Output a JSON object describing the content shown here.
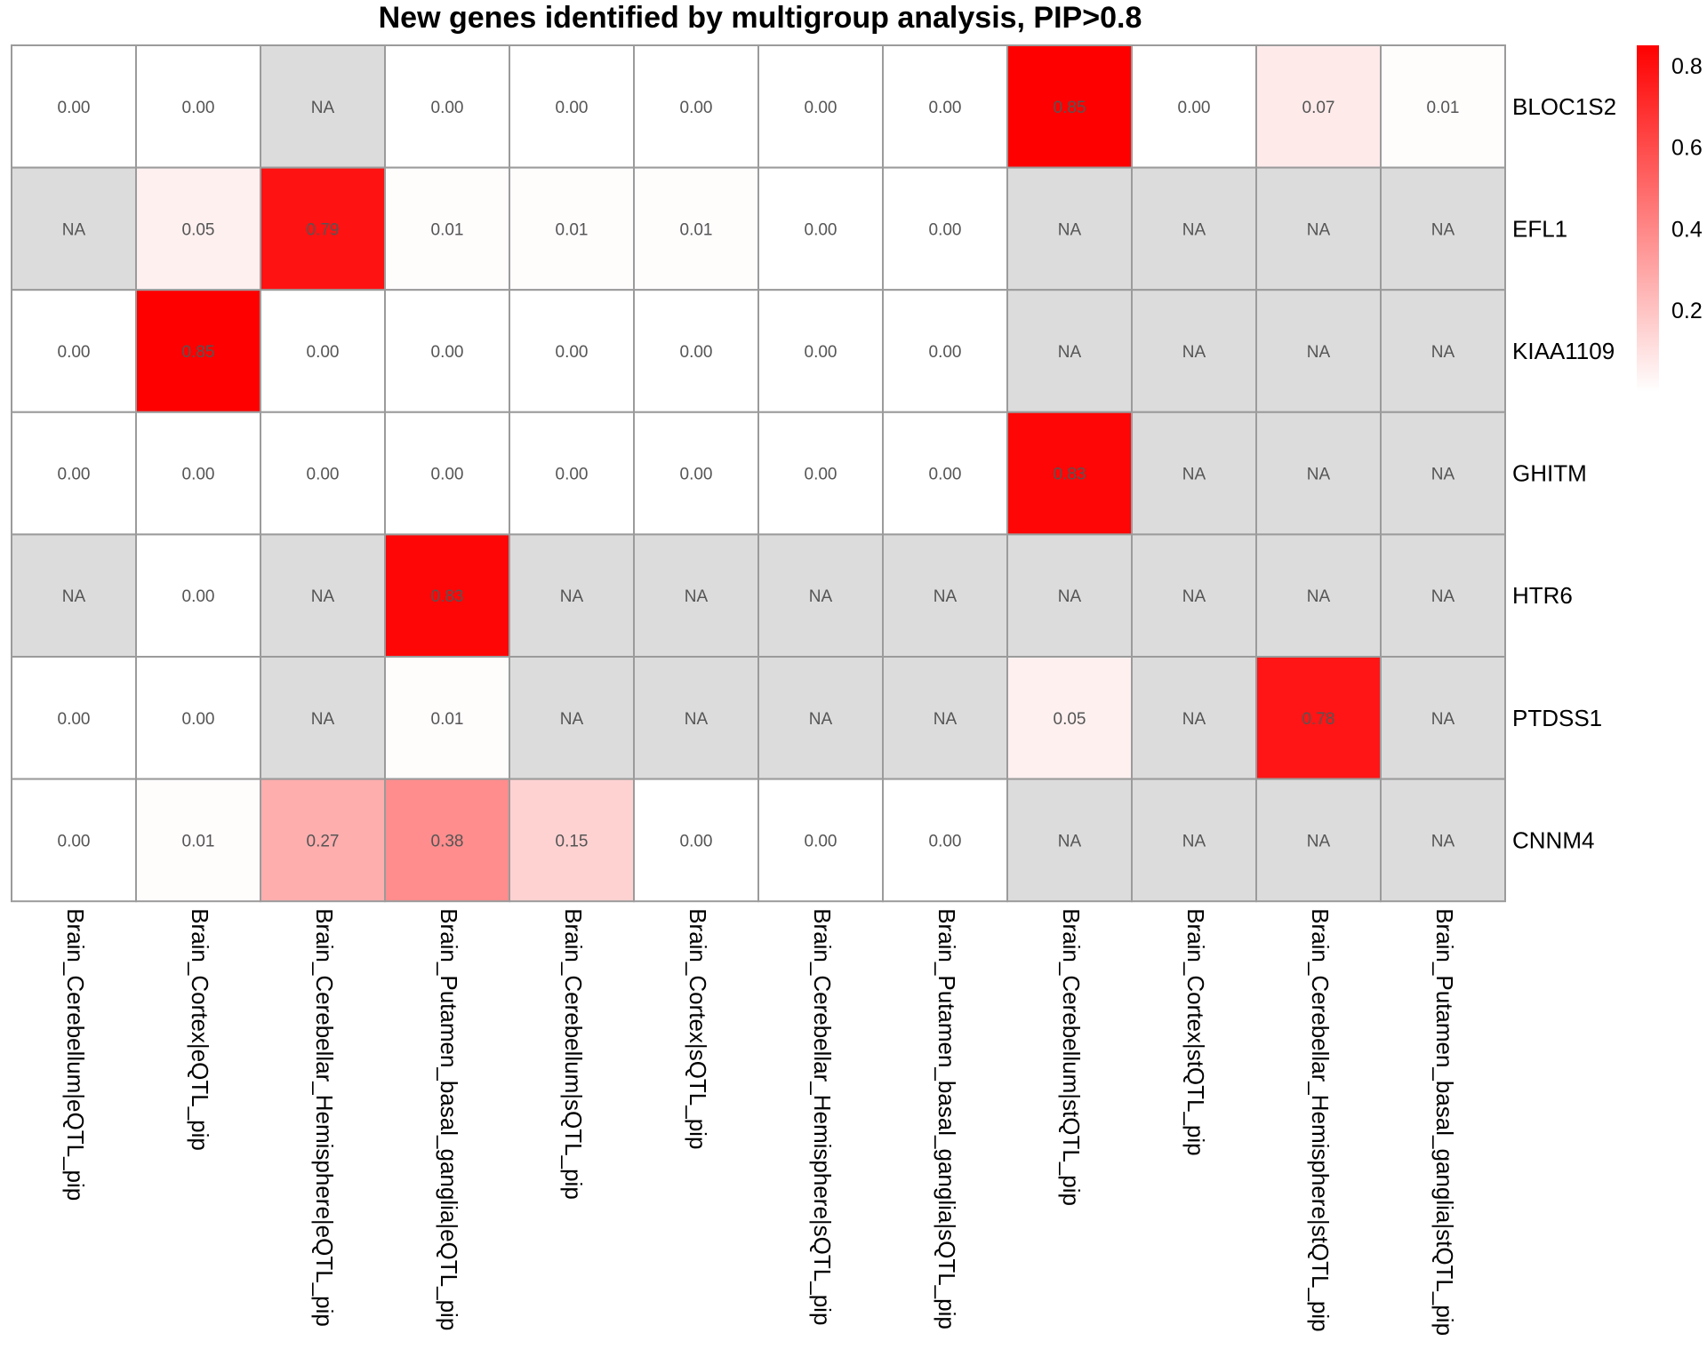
{
  "chart_data": {
    "type": "heatmap",
    "title": "New genes identified by multigroup analysis, PIP>0.8",
    "rows": [
      "BLOC1S2",
      "EFL1",
      "KIAA1109",
      "GHITM",
      "HTR6",
      "PTDSS1",
      "CNNM4"
    ],
    "columns": [
      "Brain_Cerebellum|eQTL_pip",
      "Brain_Cortex|eQTL_pip",
      "Brain_Cerebellar_Hemisphere|eQTL_pip",
      "Brain_Putamen_basal_ganglia|eQTL_pip",
      "Brain_Cerebellum|sQTL_pip",
      "Brain_Cortex|sQTL_pip",
      "Brain_Cerebellar_Hemisphere|sQTL_pip",
      "Brain_Putamen_basal_ganglia|sQTL_pip",
      "Brain_Cerebellum|stQTL_pip",
      "Brain_Cortex|stQTL_pip",
      "Brain_Cerebellar_Hemisphere|stQTL_pip",
      "Brain_Putamen_basal_ganglia|stQTL_pip"
    ],
    "values": [
      [
        0.0,
        0.0,
        null,
        0.0,
        0.0,
        0.0,
        0.0,
        0.0,
        0.85,
        0.0,
        0.07,
        0.01
      ],
      [
        null,
        0.05,
        0.79,
        0.01,
        0.01,
        0.01,
        0.0,
        0.0,
        null,
        null,
        null,
        null
      ],
      [
        0.0,
        0.85,
        0.0,
        0.0,
        0.0,
        0.0,
        0.0,
        0.0,
        null,
        null,
        null,
        null
      ],
      [
        0.0,
        0.0,
        0.0,
        0.0,
        0.0,
        0.0,
        0.0,
        0.0,
        0.83,
        null,
        null,
        null
      ],
      [
        null,
        0.0,
        null,
        0.83,
        null,
        null,
        null,
        null,
        null,
        null,
        null,
        null
      ],
      [
        0.0,
        0.0,
        null,
        0.01,
        null,
        null,
        null,
        null,
        0.05,
        null,
        0.78,
        null
      ],
      [
        0.0,
        0.01,
        0.27,
        0.38,
        0.15,
        0.0,
        0.0,
        0.0,
        null,
        null,
        null,
        null
      ]
    ],
    "na_label": "NA",
    "value_format_decimals": 2,
    "color_scale": {
      "low": "#ffffff",
      "high": "#ff0000",
      "min": 0,
      "max": 0.85
    },
    "na_color": "#dcdcdc",
    "border_color": "#9b9b9b",
    "cell_text_color": "#555555",
    "legend": {
      "position": "right",
      "ticks": [
        0.8,
        0.6,
        0.4,
        0.2
      ]
    }
  }
}
